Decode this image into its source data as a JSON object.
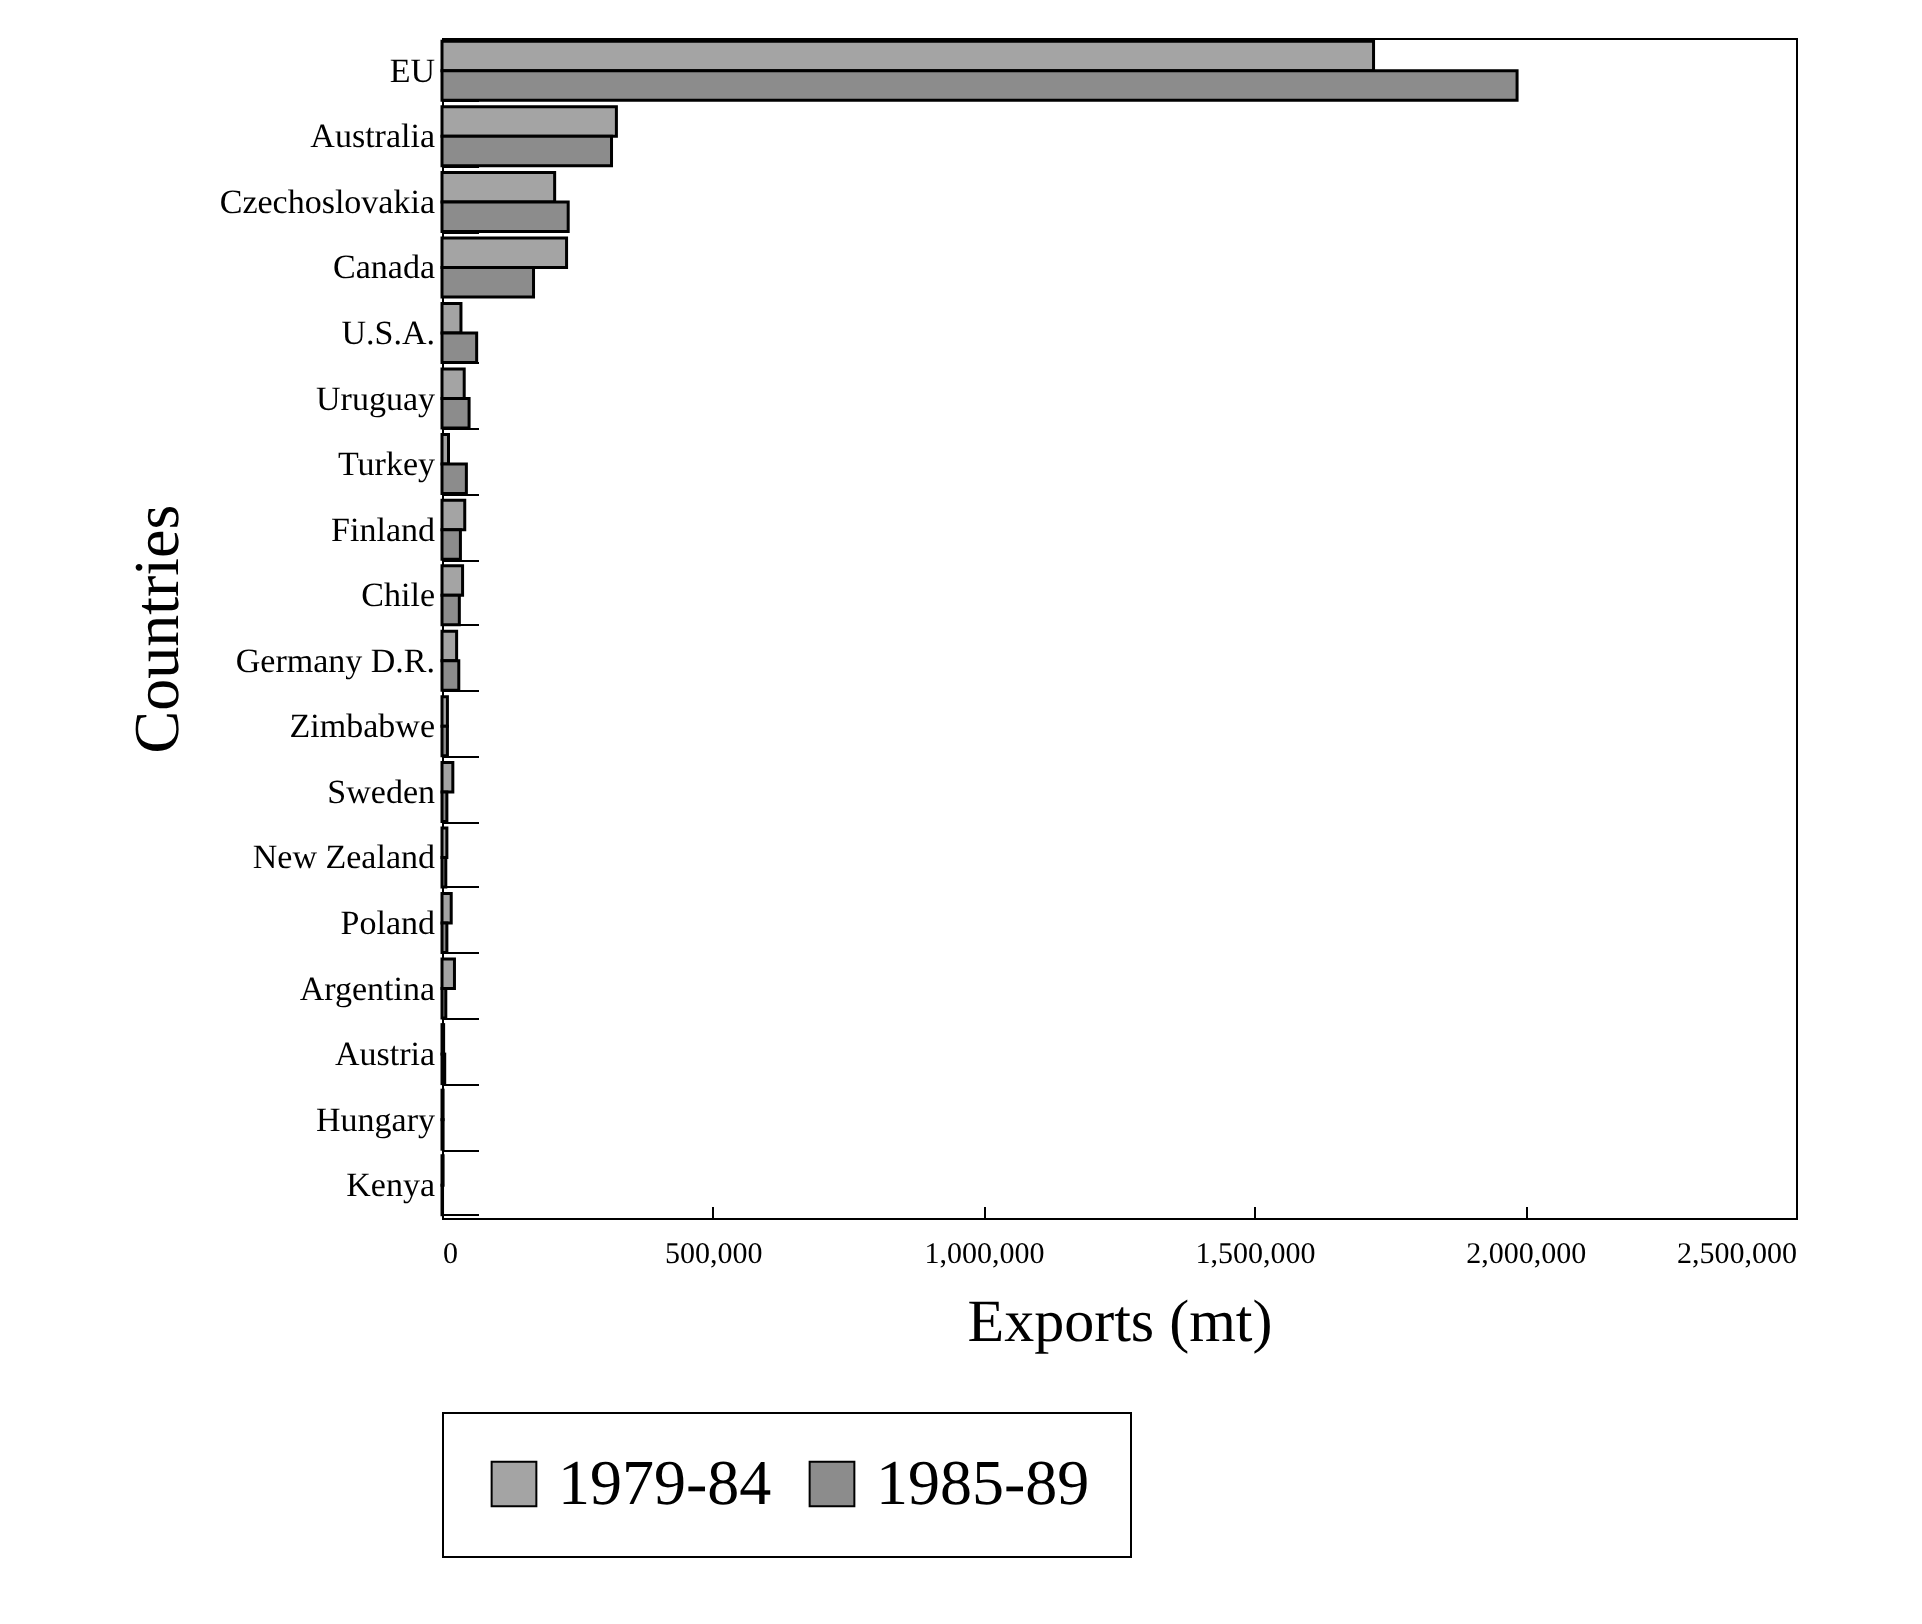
{
  "chart_data": {
    "type": "bar",
    "orientation": "horizontal",
    "xlabel": "Exports (mt)",
    "ylabel": "Countries",
    "categories": [
      "EU",
      "Australia",
      "Czechoslovakia",
      "Canada",
      "U.S.A.",
      "Uruguay",
      "Turkey",
      "Finland",
      "Chile",
      "Germany D.R.",
      "Zimbabwe",
      "Sweden",
      "New Zealand",
      "Poland",
      "Argentina",
      "Austria",
      "Hungary",
      "Kenya"
    ],
    "series": [
      {
        "name": "1979-84",
        "color": "#a4a4a4",
        "values": [
          1720000,
          322000,
          208000,
          230000,
          35000,
          41000,
          12000,
          42000,
          38000,
          27000,
          10000,
          20000,
          9000,
          17000,
          23000,
          3000,
          2000,
          2000
        ]
      },
      {
        "name": "1985-89",
        "color": "#8c8c8c",
        "values": [
          1985000,
          313000,
          233000,
          169000,
          64000,
          50000,
          45000,
          34000,
          32000,
          31000,
          10000,
          9000,
          7000,
          9000,
          7000,
          5000,
          2000,
          1000
        ]
      }
    ],
    "xlim": [
      0,
      2500000
    ],
    "xticks": [
      0,
      {
        "value": 500000,
        "label": "500,000"
      },
      {
        "value": 1000000,
        "label": "1,000,000"
      },
      {
        "value": 1500000,
        "label": "1,500,000"
      },
      {
        "value": 2000000,
        "label": "2,000,000"
      },
      {
        "value": 2500000,
        "label": "2,500,000"
      }
    ],
    "grid": false,
    "legend": "bottom"
  }
}
